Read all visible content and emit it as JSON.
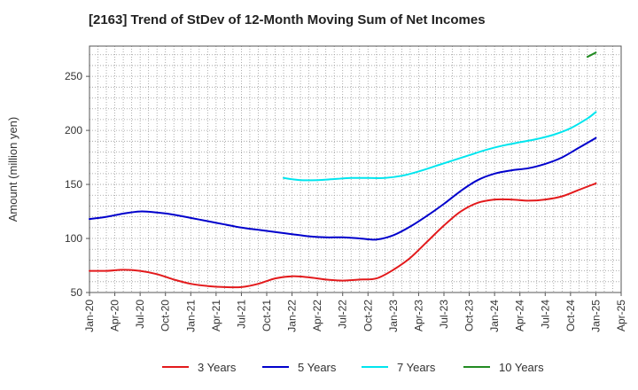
{
  "chart_data": {
    "type": "line",
    "title": "[2163]  Trend of StDev of 12-Month Moving Sum of Net Incomes",
    "xlabel": "",
    "ylabel": "Amount (million yen)",
    "ylim": [
      50,
      278
    ],
    "yticks": [
      50,
      100,
      150,
      200,
      250
    ],
    "x_start": "2020-01",
    "x_end": "2025-04",
    "xticks": [
      "Jan-20",
      "Apr-20",
      "Jul-20",
      "Oct-20",
      "Jan-21",
      "Apr-21",
      "Jul-21",
      "Oct-21",
      "Jan-22",
      "Apr-22",
      "Jul-22",
      "Oct-22",
      "Jan-23",
      "Apr-23",
      "Jul-23",
      "Oct-23",
      "Jan-24",
      "Apr-24",
      "Jul-24",
      "Oct-24",
      "Jan-25",
      "Apr-25"
    ],
    "grid": true,
    "legend_position": "bottom",
    "series": [
      {
        "name": "3 Years",
        "color": "#e31a1c",
        "x": [
          "2020-01",
          "2020-03",
          "2020-05",
          "2020-07",
          "2020-09",
          "2020-11",
          "2021-01",
          "2021-03",
          "2021-05",
          "2021-07",
          "2021-09",
          "2021-11",
          "2022-01",
          "2022-03",
          "2022-05",
          "2022-07",
          "2022-09",
          "2022-11",
          "2023-01",
          "2023-03",
          "2023-05",
          "2023-07",
          "2023-09",
          "2023-11",
          "2024-01",
          "2024-03",
          "2024-05",
          "2024-07",
          "2024-09",
          "2024-11",
          "2025-01"
        ],
        "values": [
          70,
          70,
          71,
          70,
          67,
          62,
          58,
          56,
          55,
          55,
          58,
          63,
          65,
          64,
          62,
          61,
          62,
          63,
          71,
          82,
          97,
          112,
          125,
          133,
          136,
          136,
          135,
          136,
          139,
          145,
          151
        ]
      },
      {
        "name": "5 Years",
        "color": "#0000cc",
        "x": [
          "2020-01",
          "2020-03",
          "2020-05",
          "2020-07",
          "2020-09",
          "2020-11",
          "2021-01",
          "2021-03",
          "2021-05",
          "2021-07",
          "2021-09",
          "2021-11",
          "2022-01",
          "2022-03",
          "2022-05",
          "2022-07",
          "2022-09",
          "2022-11",
          "2023-01",
          "2023-03",
          "2023-05",
          "2023-07",
          "2023-09",
          "2023-11",
          "2024-01",
          "2024-03",
          "2024-05",
          "2024-07",
          "2024-09",
          "2024-11",
          "2025-01"
        ],
        "values": [
          118,
          120,
          123,
          125,
          124,
          122,
          119,
          116,
          113,
          110,
          108,
          106,
          104,
          102,
          101,
          101,
          100,
          99,
          103,
          111,
          121,
          132,
          144,
          154,
          160,
          163,
          165,
          169,
          175,
          184,
          193
        ]
      },
      {
        "name": "7 Years",
        "color": "#00e5ee",
        "x": [
          "2021-12",
          "2022-02",
          "2022-04",
          "2022-06",
          "2022-08",
          "2022-10",
          "2022-12",
          "2023-02",
          "2023-04",
          "2023-06",
          "2023-08",
          "2023-10",
          "2023-12",
          "2024-02",
          "2024-04",
          "2024-06",
          "2024-08",
          "2024-10",
          "2024-12",
          "2025-01"
        ],
        "values": [
          156,
          154,
          154,
          155,
          156,
          156,
          156,
          158,
          162,
          167,
          172,
          177,
          182,
          186,
          189,
          192,
          196,
          202,
          211,
          217
        ]
      },
      {
        "name": "10 Years",
        "color": "#228b22",
        "x": [
          "2024-12",
          "2025-01"
        ],
        "values": [
          268,
          272
        ]
      }
    ]
  }
}
